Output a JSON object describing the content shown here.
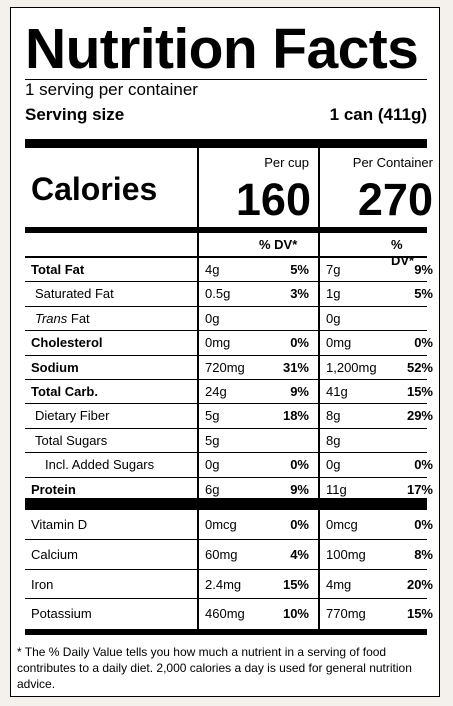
{
  "title": "Nutrition Facts",
  "servings_per_container": "1 serving per container",
  "serving_size_label": "Serving size",
  "serving_size_value": "1 can (411g)",
  "calories_label": "Calories",
  "col1_header": "Per cup",
  "col2_header": "Per Container",
  "calories_col1": "160",
  "calories_col2": "270",
  "dv_header": "% DV*",
  "nutrients": [
    {
      "name": "Total Fat",
      "bold": true,
      "italic_prefix": "",
      "v1": "4g",
      "p1": "5%",
      "v2": "7g",
      "p2": "9%"
    },
    {
      "name": "Saturated Fat",
      "bold": false,
      "indent": 1,
      "v1": "0.5g",
      "p1": "3%",
      "v2": "1g",
      "p2": "5%"
    },
    {
      "name": " Fat",
      "italic_prefix": "Trans",
      "bold": false,
      "indent": 1,
      "v1": "0g",
      "p1": "",
      "v2": "0g",
      "p2": ""
    },
    {
      "name": "Cholesterol",
      "bold": true,
      "v1": "0mg",
      "p1": "0%",
      "v2": "0mg",
      "p2": "0%"
    },
    {
      "name": "Sodium",
      "bold": true,
      "v1": "720mg",
      "p1": "31%",
      "v2": "1,200mg",
      "p2": "52%"
    },
    {
      "name": "Total Carb.",
      "bold": true,
      "v1": "24g",
      "p1": "9%",
      "v2": "41g",
      "p2": "15%"
    },
    {
      "name": "Dietary Fiber",
      "bold": false,
      "indent": 1,
      "v1": "5g",
      "p1": "18%",
      "v2": "8g",
      "p2": "29%"
    },
    {
      "name": "Total Sugars",
      "bold": false,
      "indent": 1,
      "v1": "5g",
      "p1": "",
      "v2": "8g",
      "p2": ""
    },
    {
      "name": "Incl. Added Sugars",
      "bold": false,
      "indent": 2,
      "v1": "0g",
      "p1": "0%",
      "v2": "0g",
      "p2": "0%"
    },
    {
      "name": "Protein",
      "bold": true,
      "v1": "6g",
      "p1": "9%",
      "v2": "11g",
      "p2": "17%"
    }
  ],
  "vitamins": [
    {
      "name": "Vitamin D",
      "v1": "0mcg",
      "p1": "0%",
      "v2": "0mcg",
      "p2": "0%"
    },
    {
      "name": "Calcium",
      "v1": "60mg",
      "p1": "4%",
      "v2": "100mg",
      "p2": "8%"
    },
    {
      "name": "Iron",
      "v1": "2.4mg",
      "p1": "15%",
      "v2": "4mg",
      "p2": "20%"
    },
    {
      "name": "Potassium",
      "v1": "460mg",
      "p1": "10%",
      "v2": "770mg",
      "p2": "15%"
    }
  ],
  "footnote": "* The % Daily Value tells you how much a nutrient in a serving of food contributes to a daily diet. 2,000 calories a day is used for general nutrition advice."
}
